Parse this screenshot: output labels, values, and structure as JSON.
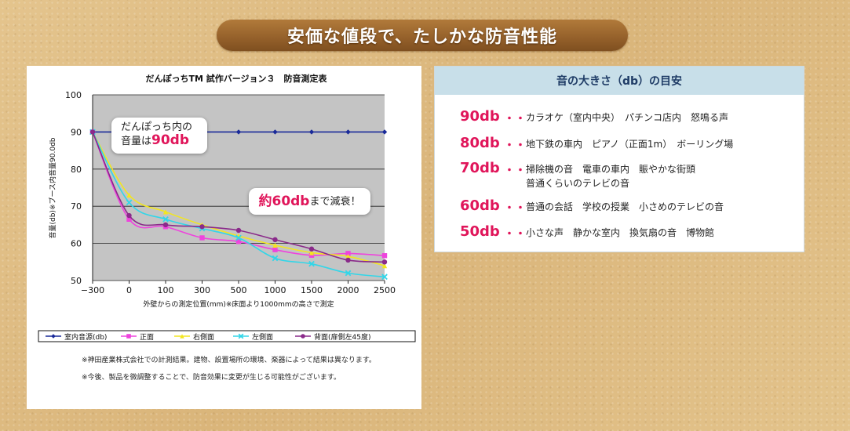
{
  "banner": {
    "title": "安価な値段で、たしかな防音性能"
  },
  "chart_data": {
    "type": "line",
    "title": "だんぽっちTM 試作バージョン３　防音測定表",
    "xlabel": "外壁からの測定位置(mm)※床面より1000mmの高さで測定",
    "ylabel": "音量(db)※ブース内音量90.0db",
    "x": [
      -300,
      0,
      100,
      300,
      500,
      1000,
      1500,
      2000,
      2500
    ],
    "x_tick_labels": [
      "−300",
      "0",
      "100",
      "300",
      "500",
      "1000",
      "1500",
      "2000",
      "2500"
    ],
    "y_ticks": [
      "50",
      "60",
      "70",
      "80",
      "90",
      "100"
    ],
    "ylim": [
      50,
      100
    ],
    "grid": true,
    "series": [
      {
        "name": "室内音源(db)",
        "color": "#1a2a99",
        "marker": "diamond",
        "values": [
          90,
          90,
          90,
          90,
          90,
          90,
          90,
          90,
          90
        ]
      },
      {
        "name": "正面",
        "color": "#ee44dd",
        "marker": "square",
        "values": [
          90,
          66.5,
          64.5,
          61.5,
          60.5,
          58.3,
          56.8,
          57.3,
          56.7
        ]
      },
      {
        "name": "右側面",
        "color": "#f2e620",
        "marker": "triangle",
        "values": [
          90,
          73,
          68.5,
          65,
          62,
          59.5,
          57.5,
          56.5,
          54
        ]
      },
      {
        "name": "左側面",
        "color": "#33d6e8",
        "marker": "x",
        "values": [
          90,
          71,
          66.5,
          64,
          61.5,
          56,
          54.5,
          52,
          51
        ]
      },
      {
        "name": "背面(扉側左45度)",
        "color": "#8a2a8a",
        "marker": "circle",
        "values": [
          90,
          67.5,
          65,
          64.5,
          63.5,
          61,
          58.5,
          55.5,
          55
        ]
      }
    ],
    "legend_position": "bottom",
    "annotations": {
      "inside_line1": "だんぽっち内の",
      "inside_line2_prefix": "音量は",
      "inside_line2_value": "90db",
      "reduce_value": "約60db",
      "reduce_suffix": "まで減衰！"
    },
    "notes": [
      "※神田産業株式会社での計測結果。建物、設置場所の環境、楽器によって結果は異なります。",
      "※今後、製品を微調整することで、防音効果に変更が生じる可能性がございます。"
    ]
  },
  "guide": {
    "title": "音の大きさ（db）の目安",
    "rows": [
      {
        "db": "90db",
        "dots": "・・",
        "desc": "カラオケ（室内中央）　パチンコ店内　怒鳴る声",
        "desc2": ""
      },
      {
        "db": "80db",
        "dots": "・・",
        "desc": "地下鉄の車内　ピアノ（正面1m）　ボーリング場",
        "desc2": ""
      },
      {
        "db": "70db",
        "dots": "・・",
        "desc": "掃除機の音　電車の車内　賑やかな街頭",
        "desc2": "普通くらいのテレビの音"
      },
      {
        "db": "60db",
        "dots": "・・",
        "desc": "普通の会話　学校の授業　小さめのテレビの音",
        "desc2": ""
      },
      {
        "db": "50db",
        "dots": "・・",
        "desc": "小さな声　静かな室内　換気扇の音　博物館",
        "desc2": ""
      }
    ]
  }
}
